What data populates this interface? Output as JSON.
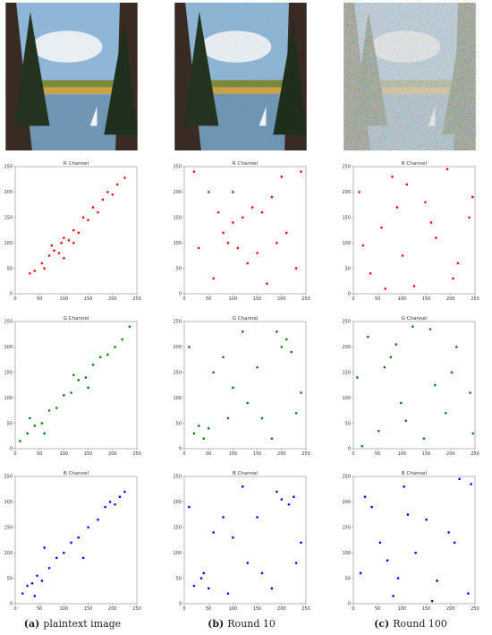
{
  "chart_data": [
    {
      "type": "scatter",
      "title": "R Channel",
      "color": "#ff0000",
      "xlim": [
        0,
        250
      ],
      "ylim": [
        0,
        250
      ],
      "xticks": [
        0,
        50,
        100,
        150,
        200,
        250
      ],
      "yticks": [
        0,
        50,
        100,
        150,
        200,
        250
      ],
      "x": [
        40,
        55,
        60,
        70,
        80,
        90,
        95,
        100,
        110,
        120,
        130,
        140,
        150,
        160,
        170,
        180,
        190,
        200,
        210,
        225,
        75,
        120,
        30,
        100
      ],
      "values": [
        45,
        60,
        50,
        75,
        85,
        80,
        100,
        110,
        105,
        125,
        120,
        150,
        145,
        170,
        160,
        185,
        200,
        195,
        215,
        228,
        95,
        100,
        40,
        70
      ]
    },
    {
      "type": "scatter",
      "title": "R Channel",
      "color": "#ff0000",
      "xlim": [
        0,
        250
      ],
      "ylim": [
        0,
        250
      ],
      "xticks": [
        0,
        50,
        100,
        150,
        200,
        250
      ],
      "yticks": [
        0,
        50,
        100,
        150,
        200,
        250
      ],
      "x": [
        20,
        50,
        80,
        90,
        100,
        110,
        120,
        140,
        160,
        180,
        150,
        200,
        230,
        60,
        30,
        210,
        130,
        100,
        240,
        170,
        70,
        190
      ],
      "values": [
        240,
        200,
        120,
        100,
        140,
        90,
        150,
        170,
        160,
        190,
        80,
        230,
        50,
        30,
        90,
        120,
        60,
        200,
        240,
        20,
        160,
        100
      ]
    },
    {
      "type": "scatter",
      "title": "R Channel",
      "color": "#ff0000",
      "xlim": [
        0,
        250
      ],
      "ylim": [
        0,
        250
      ],
      "xticks": [
        0,
        50,
        100,
        150,
        200,
        250
      ],
      "yticks": [
        0,
        50,
        100,
        150,
        200,
        250
      ],
      "x": [
        12,
        35,
        58,
        80,
        101,
        125,
        148,
        170,
        193,
        215,
        238,
        20,
        66,
        110,
        160,
        205,
        245,
        90
      ],
      "values": [
        200,
        40,
        130,
        230,
        75,
        15,
        180,
        110,
        245,
        60,
        150,
        95,
        10,
        215,
        140,
        30,
        190,
        170
      ]
    },
    {
      "type": "scatter",
      "title": "G Channel",
      "color": "#008000",
      "xlim": [
        0,
        250
      ],
      "ylim": [
        0,
        250
      ],
      "xticks": [
        0,
        50,
        100,
        150,
        200,
        250
      ],
      "yticks": [
        0,
        50,
        100,
        150,
        200,
        250
      ],
      "x": [
        10,
        25,
        40,
        55,
        70,
        85,
        100,
        115,
        130,
        145,
        160,
        175,
        190,
        205,
        220,
        235,
        60,
        150,
        30,
        120
      ],
      "values": [
        15,
        30,
        45,
        50,
        75,
        80,
        105,
        110,
        135,
        140,
        165,
        180,
        185,
        200,
        215,
        240,
        30,
        120,
        60,
        145
      ]
    },
    {
      "type": "scatter",
      "title": "G Channel",
      "color": "#008000",
      "xlim": [
        0,
        250
      ],
      "ylim": [
        0,
        250
      ],
      "xticks": [
        0,
        50,
        100,
        150,
        200,
        250
      ],
      "yticks": [
        0,
        50,
        100,
        150,
        200,
        250
      ],
      "x": [
        20,
        30,
        40,
        50,
        200,
        210,
        220,
        190,
        100,
        130,
        80,
        160,
        240,
        60,
        120,
        180,
        10,
        230,
        150,
        90
      ],
      "values": [
        30,
        45,
        20,
        40,
        200,
        215,
        190,
        230,
        120,
        90,
        180,
        60,
        110,
        150,
        230,
        20,
        200,
        70,
        160,
        60
      ]
    },
    {
      "type": "scatter",
      "title": "G Channel",
      "color": "#008000",
      "xlim": [
        0,
        250
      ],
      "ylim": [
        0,
        250
      ],
      "xticks": [
        0,
        50,
        100,
        150,
        200,
        250
      ],
      "yticks": [
        0,
        50,
        100,
        150,
        200,
        250
      ],
      "x": [
        8,
        30,
        52,
        77,
        98,
        122,
        145,
        168,
        190,
        212,
        240,
        18,
        64,
        108,
        158,
        202,
        246,
        88
      ],
      "values": [
        140,
        220,
        35,
        180,
        90,
        240,
        20,
        125,
        70,
        200,
        110,
        5,
        160,
        55,
        235,
        150,
        30,
        205
      ]
    },
    {
      "type": "scatter",
      "title": "B Channel",
      "color": "#0000ff",
      "xlim": [
        0,
        250
      ],
      "ylim": [
        0,
        250
      ],
      "xticks": [
        0,
        50,
        100,
        150,
        200,
        250
      ],
      "yticks": [
        0,
        50,
        100,
        150,
        200,
        250
      ],
      "x": [
        15,
        25,
        35,
        45,
        55,
        70,
        85,
        100,
        115,
        130,
        150,
        170,
        185,
        195,
        205,
        215,
        225,
        60,
        140,
        40
      ],
      "values": [
        20,
        35,
        40,
        55,
        45,
        70,
        90,
        100,
        120,
        130,
        150,
        165,
        190,
        200,
        195,
        210,
        220,
        110,
        90,
        15
      ]
    },
    {
      "type": "scatter",
      "title": "B Channel",
      "color": "#0000ff",
      "xlim": [
        0,
        250
      ],
      "ylim": [
        0,
        250
      ],
      "xticks": [
        0,
        50,
        100,
        150,
        200,
        250
      ],
      "yticks": [
        0,
        50,
        100,
        150,
        200,
        250
      ],
      "x": [
        20,
        35,
        50,
        40,
        200,
        215,
        190,
        225,
        100,
        130,
        80,
        160,
        240,
        60,
        120,
        180,
        10,
        230,
        150,
        90
      ],
      "values": [
        35,
        50,
        30,
        60,
        205,
        195,
        220,
        210,
        130,
        80,
        170,
        60,
        120,
        140,
        230,
        30,
        190,
        80,
        170,
        20
      ]
    },
    {
      "type": "scatter",
      "title": "B Channel",
      "color": "#0000ff",
      "xlim": [
        0,
        250
      ],
      "ylim": [
        0,
        250
      ],
      "xticks": [
        0,
        50,
        100,
        150,
        200,
        250
      ],
      "yticks": [
        0,
        50,
        100,
        150,
        200,
        250
      ],
      "x": [
        15,
        38,
        55,
        82,
        104,
        128,
        150,
        172,
        196,
        218,
        236,
        24,
        70,
        112,
        162,
        208,
        242,
        92
      ],
      "values": [
        60,
        190,
        120,
        15,
        230,
        100,
        165,
        45,
        140,
        245,
        20,
        210,
        85,
        175,
        5,
        120,
        235,
        50
      ]
    }
  ],
  "captions": [
    {
      "label": "(a)",
      "text": "plaintext image"
    },
    {
      "label": "(b)",
      "text": "Round 10"
    },
    {
      "label": "(c)",
      "text": "Round 100"
    }
  ]
}
